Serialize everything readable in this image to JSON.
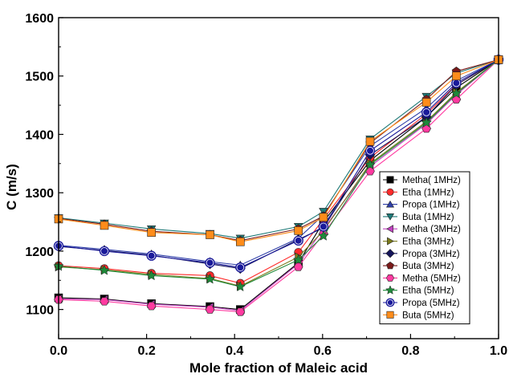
{
  "chart_data": {
    "type": "line",
    "title": "",
    "xlabel": "Mole fraction of Maleic acid",
    "ylabel": "C  (m/s)",
    "xlim": [
      0.0,
      1.0
    ],
    "ylim": [
      1050,
      1600
    ],
    "xticks": [
      "0.0",
      "0.2",
      "0.4",
      "0.6",
      "0.8",
      "1.0"
    ],
    "yticks": [
      "1100",
      "1200",
      "1300",
      "1400",
      "1500",
      "1600"
    ],
    "grid": false,
    "legend_position": "center-right",
    "x": [
      0.0,
      0.104,
      0.211,
      0.344,
      0.413,
      0.545,
      0.602,
      0.708,
      0.836,
      0.904,
      1.0
    ],
    "series": [
      {
        "name": "Metha( 1MHz)",
        "marker": "square",
        "color": "#000000",
        "values": [
          1120,
          1118,
          1110,
          1105,
          1100,
          1180,
          1250,
          1355,
          1430,
          1480,
          1528
        ]
      },
      {
        "name": "Etha (1MHz)",
        "marker": "circle",
        "color": "#ff2a2a",
        "values": [
          1175,
          1170,
          1162,
          1158,
          1145,
          1198,
          1255,
          1360,
          1435,
          1485,
          1528
        ]
      },
      {
        "name": "Propa (1MHz)",
        "marker": "triangle-up",
        "color": "#2f3fa8",
        "values": [
          1210,
          1203,
          1195,
          1182,
          1176,
          1222,
          1262,
          1380,
          1445,
          1492,
          1528
        ]
      },
      {
        "name": "Buta (1MHz)",
        "marker": "triangle-down",
        "color": "#1e7a78",
        "values": [
          1257,
          1248,
          1238,
          1230,
          1222,
          1242,
          1268,
          1392,
          1465,
          1505,
          1528
        ]
      },
      {
        "name": "Metha (3MHz)",
        "marker": "triangle-left",
        "color": "#c040c0",
        "values": [
          1118,
          1117,
          1109,
          1104,
          1098,
          1178,
          1238,
          1345,
          1418,
          1468,
          1528
        ]
      },
      {
        "name": "Etha (3MHz)",
        "marker": "triangle-right",
        "color": "#7a7a1a",
        "values": [
          1173,
          1168,
          1160,
          1153,
          1140,
          1190,
          1235,
          1350,
          1422,
          1472,
          1528
        ]
      },
      {
        "name": "Propa (3MHz)",
        "marker": "diamond",
        "color": "#14145a",
        "values": [
          1208,
          1201,
          1193,
          1178,
          1170,
          1220,
          1240,
          1365,
          1430,
          1485,
          1528
        ]
      },
      {
        "name": "Buta (3MHz)",
        "marker": "pentagon",
        "color": "#7a1a1a",
        "values": [
          1256,
          1246,
          1234,
          1228,
          1218,
          1238,
          1260,
          1385,
          1460,
          1508,
          1528
        ]
      },
      {
        "name": "Metha (5MHz)",
        "marker": "hexagon",
        "color": "#ff3aa0",
        "values": [
          1117,
          1114,
          1106,
          1100,
          1096,
          1173,
          1230,
          1337,
          1410,
          1460,
          1528
        ]
      },
      {
        "name": "Etha (5MHz)",
        "marker": "star",
        "color": "#1e8a3a",
        "values": [
          1174,
          1167,
          1158,
          1152,
          1139,
          1185,
          1226,
          1348,
          1420,
          1470,
          1528
        ]
      },
      {
        "name": "Propa (5MHz)",
        "marker": "circle-half",
        "color": "#1a1a9a",
        "values": [
          1209,
          1200,
          1192,
          1180,
          1172,
          1218,
          1242,
          1372,
          1438,
          1488,
          1528
        ]
      },
      {
        "name": "Buta (5MHz)",
        "marker": "square",
        "color": "#ff8c1a",
        "values": [
          1255,
          1244,
          1232,
          1228,
          1216,
          1235,
          1258,
          1388,
          1455,
          1500,
          1528
        ]
      }
    ]
  }
}
